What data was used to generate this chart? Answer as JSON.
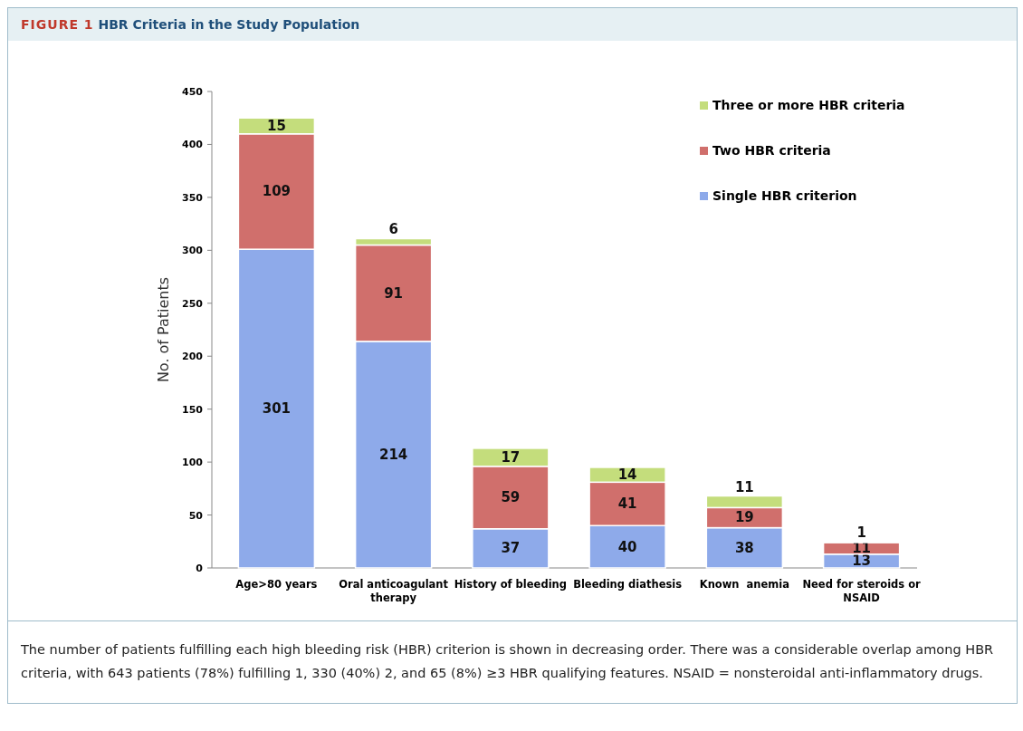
{
  "chart_data": {
    "type": "bar",
    "title": "FIGURE 1 HBR Criteria in the Study Population",
    "ylabel": "No. of Patients",
    "categories": [
      "Age>80 years",
      "Oral anticoagulant therapy",
      "History of bleeding",
      "Bleeding diathesis",
      "Known  anemia",
      "Need for steroids or NSAID"
    ],
    "stacked": true,
    "data_labels": true,
    "legend": "top right",
    "grid": false,
    "ylim": [
      0,
      450
    ],
    "yticks": [
      0,
      50,
      100,
      150,
      200,
      250,
      300,
      350,
      400,
      450
    ],
    "series": [
      {
        "name": "Single HBR criterion",
        "color": "#8eaaea",
        "values": [
          301,
          214,
          37,
          40,
          38,
          13
        ]
      },
      {
        "name": "Two HBR criteria",
        "color": "#d06f6c",
        "values": [
          109,
          91,
          59,
          41,
          19,
          11
        ]
      },
      {
        "name": "Three or more HBR criteria",
        "color": "#c4dd7c",
        "values": [
          15,
          6,
          17,
          14,
          11,
          1
        ]
      }
    ],
    "annotations": [
      "The number of patients fulfilling each high bleeding risk (HBR) criterion is shown in decreasing order. There was a considerable overlap among HBR criteria, with 643 patients (78%) fulfilling 1, 330 (40%) 2, and 65 (8%) ≥3 HBR qualifying features. NSAID = nonsteroidal anti-inflammatory drugs."
    ]
  }
}
